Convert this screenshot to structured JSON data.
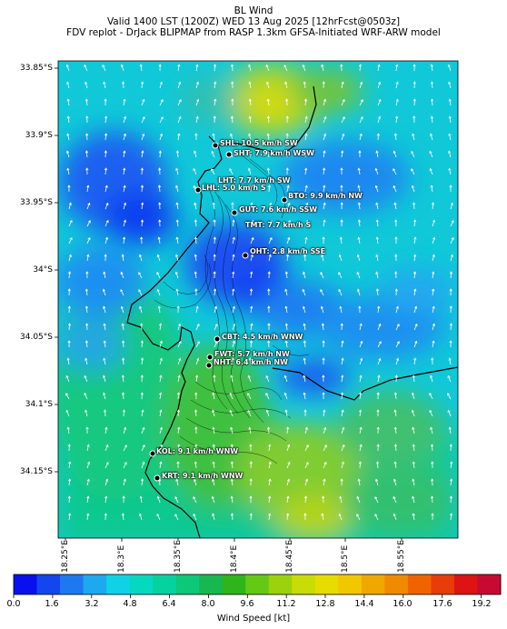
{
  "header": {
    "line1": "BL Wind",
    "line2": "Valid 1400 LST (1200Z) WED 13 Aug 2025 [12hrFcst@0503z]",
    "line3": "FDV replot - DrJack BLIPMAP from RASP 1.3km GFSA-Initiated WRF-ARW model"
  },
  "axes": {
    "lat_ticks": [
      "33.85°S",
      "33.9°S",
      "33.95°S",
      "34°S",
      "34.05°S",
      "34.1°S",
      "34.15°S"
    ],
    "lon_ticks": [
      "18.25°E",
      "18.3°E",
      "18.35°E",
      "18.4°E",
      "18.45°E",
      "18.5°E",
      "18.55°E"
    ]
  },
  "colorbar": {
    "title": "Wind Speed [kt]",
    "unit": "kt",
    "min": 0.0,
    "max": 20.0,
    "tick_labels": [
      "0.0",
      "1.6",
      "3.2",
      "4.8",
      "6.4",
      "8.0",
      "9.6",
      "11.2",
      "12.8",
      "14.4",
      "16.0",
      "17.6",
      "19.2"
    ],
    "colors": [
      "#0a0ff0",
      "#1446f0",
      "#1e78f0",
      "#1ea8f0",
      "#10d2e6",
      "#06d8c0",
      "#06d2a0",
      "#0cc878",
      "#18b850",
      "#30b41c",
      "#64c814",
      "#9cd20c",
      "#c8dc06",
      "#e6dc00",
      "#f0c800",
      "#f0a800",
      "#f08a00",
      "#f06400",
      "#e83c0a",
      "#dc1414",
      "#c80a32"
    ]
  },
  "stations": [
    {
      "code": "SHL",
      "label": "SHL: 10.5 km/h SW"
    },
    {
      "code": "SHT",
      "label": "SHT: 7.9 km/h WSW"
    },
    {
      "code": "LHT",
      "label": "LHT: 7.7 km/h SW"
    },
    {
      "code": "LHL",
      "label": "LHL: 5.0 km/h S"
    },
    {
      "code": "BTO",
      "label": "BTO: 9.9 km/h NW"
    },
    {
      "code": "GUT",
      "label": "GUT: 7.6 km/h SSW"
    },
    {
      "code": "TMT",
      "label": "TMT: 7.7 km/h S"
    },
    {
      "code": "OHT",
      "label": "OHT: 2.8 km/h SSE"
    },
    {
      "code": "CBT",
      "label": "CBT: 4.5 km/h WNW"
    },
    {
      "code": "FWT",
      "label": "FWT: 5.7 km/h NW"
    },
    {
      "code": "NHT",
      "label": "NHT: 6.4 km/h NW"
    },
    {
      "code": "KOL",
      "label": "KOL: 9.1 km/h WNW"
    },
    {
      "code": "KRT",
      "label": "KRT: 9.1 km/h WNW"
    }
  ],
  "wind_field": {
    "prevailing_direction": "N",
    "arrow_color": "#ffffff"
  }
}
